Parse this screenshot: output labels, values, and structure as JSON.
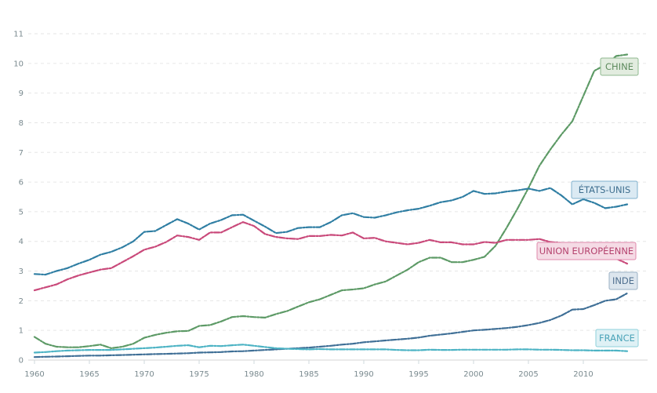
{
  "chart_data": {
    "type": "line",
    "xlim": [
      1960,
      2014
    ],
    "ylim": [
      0,
      11
    ],
    "y_ticks": [
      0,
      1,
      2,
      3,
      4,
      5,
      6,
      7,
      8,
      9,
      10,
      11
    ],
    "x_ticks": [
      1960,
      1965,
      1970,
      1975,
      1980,
      1985,
      1990,
      1995,
      2000,
      2005,
      2010
    ],
    "grid": "horizontal dashed",
    "legend": "labels at line ends",
    "x": [
      1960,
      1961,
      1962,
      1963,
      1964,
      1965,
      1966,
      1967,
      1968,
      1969,
      1970,
      1971,
      1972,
      1973,
      1974,
      1975,
      1976,
      1977,
      1978,
      1979,
      1980,
      1981,
      1982,
      1983,
      1984,
      1985,
      1986,
      1987,
      1988,
      1989,
      1990,
      1991,
      1992,
      1993,
      1994,
      1995,
      1996,
      1997,
      1998,
      1999,
      2000,
      2001,
      2002,
      2003,
      2004,
      2005,
      2006,
      2007,
      2008,
      2009,
      2010,
      2011,
      2012,
      2013,
      2014
    ],
    "series": [
      {
        "name": "CHINE",
        "color": "#5d9a66",
        "box_fill": "#e2ecdf",
        "box_stroke": "#8fb98f",
        "text_color": "#5d8a5d",
        "values": [
          0.78,
          0.55,
          0.45,
          0.43,
          0.43,
          0.47,
          0.52,
          0.4,
          0.45,
          0.55,
          0.75,
          0.85,
          0.92,
          0.97,
          0.98,
          1.15,
          1.18,
          1.3,
          1.45,
          1.48,
          1.45,
          1.43,
          1.55,
          1.65,
          1.8,
          1.95,
          2.05,
          2.2,
          2.35,
          2.38,
          2.42,
          2.55,
          2.65,
          2.85,
          3.05,
          3.3,
          3.45,
          3.45,
          3.3,
          3.3,
          3.38,
          3.48,
          3.85,
          4.45,
          5.1,
          5.8,
          6.55,
          7.1,
          7.6,
          8.05,
          8.9,
          9.75,
          9.95,
          10.25,
          10.3
        ]
      },
      {
        "name": "ÉTATS-UNIS",
        "color": "#2f7ea3",
        "box_fill": "#dbeaf3",
        "box_stroke": "#7fb0cc",
        "text_color": "#3f6f8f",
        "values": [
          2.9,
          2.88,
          3.0,
          3.1,
          3.25,
          3.38,
          3.55,
          3.65,
          3.8,
          4.0,
          4.32,
          4.35,
          4.55,
          4.75,
          4.6,
          4.4,
          4.6,
          4.72,
          4.88,
          4.9,
          4.7,
          4.5,
          4.28,
          4.32,
          4.45,
          4.48,
          4.48,
          4.65,
          4.88,
          4.95,
          4.82,
          4.8,
          4.88,
          4.98,
          5.05,
          5.1,
          5.2,
          5.32,
          5.38,
          5.5,
          5.7,
          5.6,
          5.62,
          5.68,
          5.72,
          5.78,
          5.7,
          5.8,
          5.55,
          5.25,
          5.42,
          5.3,
          5.12,
          5.17,
          5.25
        ]
      },
      {
        "name": "UNION EUROPÉENNE",
        "color": "#c9497a",
        "box_fill": "#f5dbe5",
        "box_stroke": "#e08aac",
        "text_color": "#b5446f",
        "values": [
          2.35,
          2.45,
          2.55,
          2.72,
          2.85,
          2.95,
          3.05,
          3.1,
          3.3,
          3.5,
          3.72,
          3.82,
          3.98,
          4.2,
          4.15,
          4.05,
          4.3,
          4.3,
          4.48,
          4.65,
          4.52,
          4.25,
          4.15,
          4.1,
          4.08,
          4.18,
          4.18,
          4.22,
          4.2,
          4.3,
          4.1,
          4.12,
          4.0,
          3.95,
          3.9,
          3.95,
          4.05,
          3.97,
          3.97,
          3.9,
          3.9,
          3.98,
          3.95,
          4.05,
          4.05,
          4.05,
          4.08,
          3.98,
          3.95,
          3.72,
          3.8,
          3.6,
          3.52,
          3.42,
          3.25
        ]
      },
      {
        "name": "INDE",
        "color": "#3f6f96",
        "box_fill": "#dde6ee",
        "box_stroke": "#9ab0c4",
        "text_color": "#4f6f8f",
        "values": [
          0.1,
          0.11,
          0.12,
          0.13,
          0.14,
          0.15,
          0.15,
          0.16,
          0.17,
          0.18,
          0.19,
          0.2,
          0.21,
          0.22,
          0.23,
          0.25,
          0.26,
          0.27,
          0.29,
          0.3,
          0.32,
          0.34,
          0.36,
          0.38,
          0.4,
          0.42,
          0.45,
          0.48,
          0.52,
          0.55,
          0.6,
          0.63,
          0.66,
          0.69,
          0.72,
          0.76,
          0.82,
          0.86,
          0.9,
          0.95,
          1.0,
          1.02,
          1.05,
          1.08,
          1.12,
          1.18,
          1.25,
          1.35,
          1.5,
          1.7,
          1.72,
          1.85,
          2.0,
          2.05,
          2.25
        ]
      },
      {
        "name": "FRANCE",
        "color": "#4cb3c4",
        "box_fill": "#dff1f5",
        "box_stroke": "#8ed0db",
        "text_color": "#4aa3b8",
        "values": [
          0.25,
          0.27,
          0.3,
          0.32,
          0.33,
          0.34,
          0.34,
          0.34,
          0.36,
          0.38,
          0.4,
          0.42,
          0.45,
          0.48,
          0.5,
          0.43,
          0.48,
          0.47,
          0.5,
          0.52,
          0.48,
          0.44,
          0.4,
          0.38,
          0.37,
          0.36,
          0.37,
          0.36,
          0.36,
          0.36,
          0.36,
          0.36,
          0.36,
          0.34,
          0.33,
          0.33,
          0.35,
          0.34,
          0.34,
          0.35,
          0.35,
          0.35,
          0.35,
          0.35,
          0.36,
          0.36,
          0.35,
          0.35,
          0.34,
          0.33,
          0.33,
          0.32,
          0.32,
          0.32,
          0.3
        ]
      }
    ]
  }
}
